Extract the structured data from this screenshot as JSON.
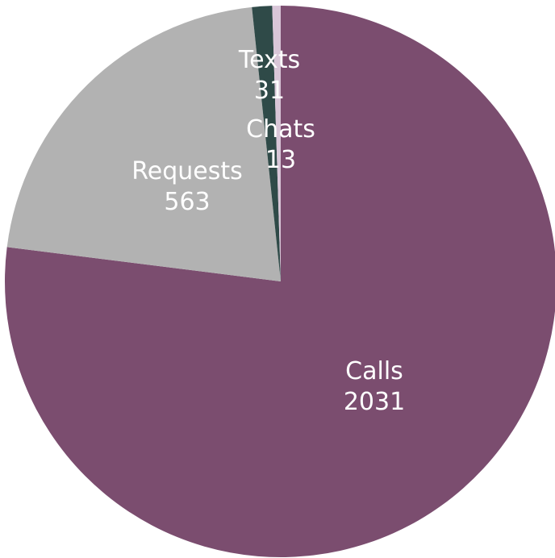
{
  "chart_data": {
    "type": "pie",
    "slices": [
      {
        "label": "Calls",
        "value": 2031,
        "color": "#7b4d6f"
      },
      {
        "label": "Requests",
        "value": 563,
        "color": "#b2b2b2"
      },
      {
        "label": "Texts",
        "value": 31,
        "color": "#2f4a48"
      },
      {
        "label": "Chats",
        "value": 13,
        "color": "#d9c6d8"
      }
    ],
    "start_angle_deg": 0,
    "direction": "clockwise",
    "legend": "none"
  }
}
